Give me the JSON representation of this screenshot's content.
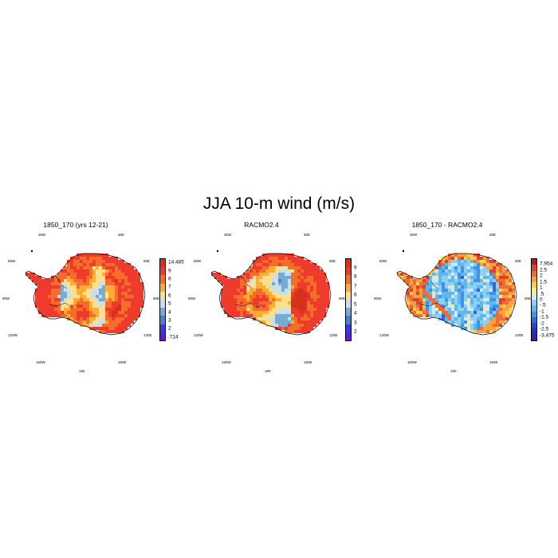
{
  "title": "JJA 10-m wind (m/s)",
  "panels": [
    {
      "title": "1850_170 (yrs 12-21)",
      "kind": "abs",
      "lon_labels": {
        "w30": "30W",
        "e30": "30E",
        "w60": "60W",
        "e60": "60E",
        "w90": "90W",
        "e90": "90E",
        "w120": "120W",
        "e120": "120E",
        "w150": "150W",
        "e150": "150E",
        "s180": "180"
      },
      "colorbar": {
        "labels": [
          "14.485",
          "9",
          "8",
          "7",
          "6",
          "5",
          "4",
          "3",
          "2",
          ".714"
        ],
        "colors": [
          "#d7301f",
          "#ef3b2c",
          "#f46d2a",
          "#fdae32",
          "#fee090",
          "#c6e0f2",
          "#74add1",
          "#4a7fd6",
          "#3a3ae0",
          "#5a1ee0"
        ]
      }
    },
    {
      "title": "RACMO2.4",
      "kind": "abs2",
      "lon_labels": {
        "w30": "30W",
        "e30": "30E",
        "w60": "60W",
        "e60": "60E",
        "w90": "90W",
        "e90": "90E",
        "w120": "120W",
        "e120": "120E",
        "w150": "150W",
        "e150": "150E",
        "s180": "180"
      },
      "colorbar": {
        "labels": [
          "9",
          "8",
          "7",
          "6",
          "5",
          "4",
          "3",
          "2"
        ],
        "colors": [
          "#d7301f",
          "#ef3b2c",
          "#f46d2a",
          "#fdae32",
          "#fee090",
          "#c6e0f2",
          "#74add1",
          "#4a7fd6",
          "#3a3ae0",
          "#5a1ee0"
        ]
      }
    },
    {
      "title": "1850_170 - RACMO2.4",
      "kind": "diff",
      "lon_labels": {
        "w30": "30W",
        "e30": "30E",
        "w60": "60W",
        "e60": "60E",
        "w90": "90W",
        "e90": "90E",
        "w120": "120W",
        "e120": "120E",
        "w150": "150W",
        "e150": "150E",
        "s180": "180"
      },
      "colorbar": {
        "labels": [
          "7.954",
          "2.5",
          "2",
          "1.5",
          "1",
          ".5",
          "0",
          "-.5",
          "-1",
          "-1.5",
          "-2",
          "-2.5",
          "-3.475"
        ],
        "colors": [
          "#b2182b",
          "#d6452f",
          "#ef6b3a",
          "#f9a13d",
          "#fdd04a",
          "#fee890",
          "#cfe8f6",
          "#8fd0f2",
          "#5fb7ec",
          "#3d94e2",
          "#2c6ad8",
          "#2a44cc",
          "#2a2ab8",
          "#3a1eb0"
        ]
      }
    }
  ]
}
